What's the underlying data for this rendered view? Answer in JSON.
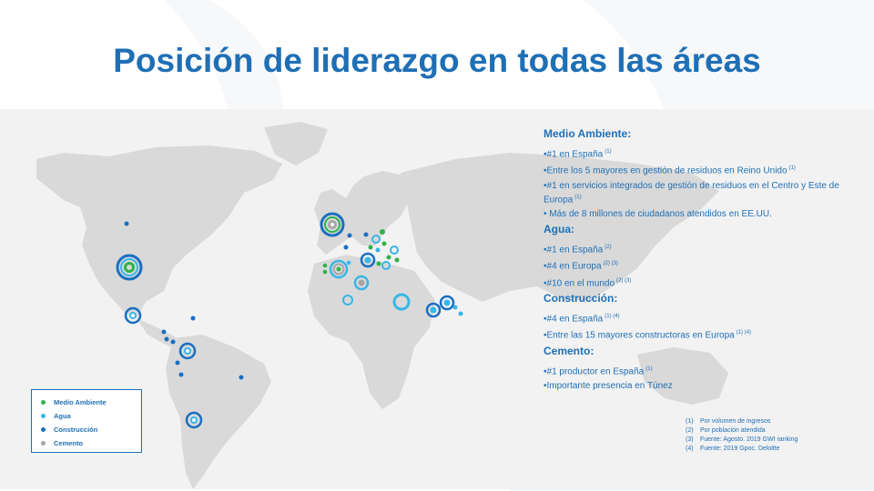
{
  "title": "Posición de liderazgo en todas las áreas",
  "colors": {
    "brand_blue": "#1f6fb5",
    "medio_ambiente": "#2db34a",
    "agua": "#37b6e8",
    "construccion": "#1a6fc1",
    "cemento": "#a6a6a6",
    "map_land": "#d9d9d9",
    "map_band": "#f2f2f2"
  },
  "sections": [
    {
      "heading": "Medio Ambiente:",
      "items": [
        {
          "text": "•#1 en España",
          "refs": "(1)"
        },
        {
          "text": "•Entre los 5 mayores en gestión de residuos en Reino Unido",
          "refs": "(1)"
        },
        {
          "text": "•#1 en servicios integrados de gestión de residuos en el Centro y Este de Europa",
          "refs": "(1)"
        },
        {
          "text": "• Más de 8 millones de ciudadanos atendidos en EE.UU.",
          "refs": ""
        }
      ]
    },
    {
      "heading": "Agua:",
      "items": [
        {
          "text": "•#1 en España",
          "refs": "(2)"
        },
        {
          "text": "•#4 en Europa",
          "refs": "(2) (3)"
        },
        {
          "text": "•#10 en el mundo",
          "refs": "(2) (3)"
        }
      ]
    },
    {
      "heading": "Construcción:",
      "items": [
        {
          "text": "•#4 en España",
          "refs": "(1) (4)"
        },
        {
          "text": "•Entre las 15 mayores constructoras en Europa",
          "refs": "(1) (4)"
        }
      ]
    },
    {
      "heading": "Cemento:",
      "items": [
        {
          "text": "•#1 productor en España",
          "refs": "(1)"
        },
        {
          "text": "•Importante presencia en Túnez",
          "refs": ""
        }
      ]
    }
  ],
  "legend": [
    {
      "label": "Medio Ambiente",
      "color": "#2db34a"
    },
    {
      "label": "Agua",
      "color": "#37b6e8"
    },
    {
      "label": "Construcción",
      "color": "#1a6fc1"
    },
    {
      "label": "Cemento",
      "color": "#a6a6a6"
    }
  ],
  "footnotes": [
    {
      "num": "(1)",
      "text": "Por volumen de ingresos"
    },
    {
      "num": "(2)",
      "text": "Por población atendida"
    },
    {
      "num": "(3)",
      "text": "Fuente: Agosto. 2019 GWI ranking"
    },
    {
      "num": "(4)",
      "text": "Fuente: 2019 Gpoc. Deloitte"
    }
  ]
}
